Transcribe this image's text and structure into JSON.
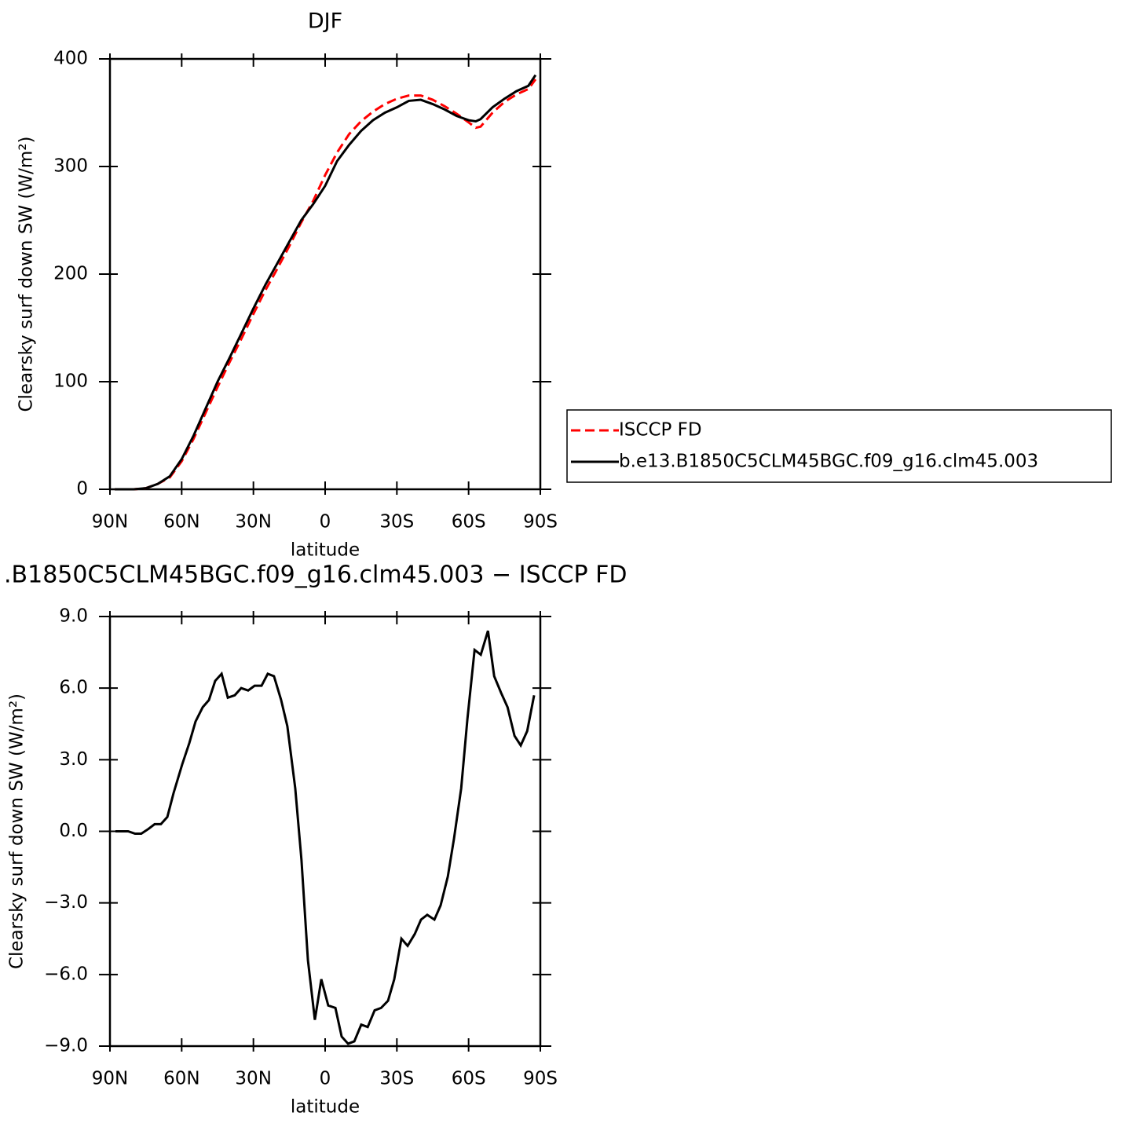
{
  "chart_data": [
    {
      "type": "line",
      "title": "DJF",
      "xlabel": "latitude",
      "ylabel": "Clearsky surf down SW (W/m²)",
      "x": [
        88,
        80,
        75,
        70,
        65,
        60,
        55,
        50,
        45,
        40,
        35,
        30,
        25,
        20,
        15,
        10,
        5,
        0,
        -5,
        -10,
        -15,
        -20,
        -25,
        -30,
        -35,
        -40,
        -45,
        -50,
        -55,
        -60,
        -63,
        -65,
        -70,
        -75,
        -80,
        -85,
        -88
      ],
      "series": [
        {
          "name": "ISCCP FD",
          "color": "#ff0000",
          "dashed": true,
          "values": [
            0,
            0,
            1,
            5,
            11,
            26,
            47,
            71,
            95,
            118,
            140,
            163,
            185,
            205,
            226,
            248,
            268,
            292,
            313,
            330,
            342,
            351,
            358,
            363,
            366,
            366,
            362,
            356,
            349,
            341,
            336,
            337,
            350,
            360,
            367,
            372,
            381
          ]
        },
        {
          "name": "b.e13.B1850C5CLM45BGC.f09_g16.clm45.003",
          "color": "#000000",
          "dashed": false,
          "values": [
            0,
            0,
            1,
            5,
            12,
            28,
            50,
            75,
            100,
            122,
            145,
            168,
            190,
            210,
            230,
            250,
            265,
            282,
            305,
            320,
            333,
            343,
            350,
            355,
            361,
            362,
            358,
            353,
            347,
            343,
            342,
            344,
            355,
            363,
            370,
            375,
            385
          ]
        }
      ],
      "xlim": [
        90,
        -90
      ],
      "xticks": [
        {
          "value": 90,
          "label": "90N"
        },
        {
          "value": 60,
          "label": "60N"
        },
        {
          "value": 30,
          "label": "30N"
        },
        0,
        {
          "value": -30,
          "label": "30S"
        },
        {
          "value": -60,
          "label": "60S"
        },
        {
          "value": -90,
          "label": "90S"
        }
      ],
      "ylim": [
        0,
        400
      ],
      "yticks": [
        0,
        100,
        200,
        300,
        400
      ],
      "legend": "right"
    },
    {
      "type": "line",
      "title": ".B1850C5CLM45BGC.f09_g16.clm45.003 − ISCCP FD",
      "xlabel": "latitude",
      "ylabel": "Clearsky surf down SW (W/m²)",
      "x": [
        87.7,
        82.4,
        79.5,
        76.9,
        73.9,
        71.3,
        68.7,
        66.0,
        63.4,
        59.8,
        56.8,
        54.2,
        51.2,
        48.6,
        46.0,
        43.3,
        40.7,
        37.8,
        35.1,
        32.2,
        29.5,
        26.6,
        24.0,
        21.4,
        18.4,
        15.8,
        12.5,
        9.9,
        7.2,
        4.3,
        1.6,
        -1.3,
        -4.3,
        -6.9,
        -9.6,
        -12.2,
        -15.1,
        -17.8,
        -20.7,
        -23.4,
        -26.3,
        -28.9,
        -31.9,
        -34.5,
        -37.5,
        -40.1,
        -42.7,
        -45.7,
        -48.3,
        -51.3,
        -53.9,
        -56.9,
        -59.5,
        -62.5,
        -65.1,
        -68.1,
        -70.7,
        -73.6,
        -76.3,
        -79.2,
        -81.8,
        -84.5,
        -87.4
      ],
      "series": [
        {
          "color": "#000000",
          "dashed": false,
          "values": [
            0,
            0,
            -0.1,
            -0.1,
            0.1,
            0.3,
            0.3,
            0.6,
            1.6,
            2.8,
            3.7,
            4.6,
            5.2,
            5.5,
            6.3,
            6.6,
            5.6,
            5.7,
            6.0,
            5.9,
            6.1,
            6.1,
            6.6,
            6.5,
            5.5,
            4.4,
            1.8,
            -1.2,
            -5.4,
            -7.9,
            -6.2,
            -7.3,
            -7.4,
            -8.6,
            -8.9,
            -8.8,
            -8.1,
            -8.2,
            -7.5,
            -7.4,
            -7.1,
            -6.2,
            -4.5,
            -4.8,
            -4.3,
            -3.7,
            -3.5,
            -3.7,
            -3.1,
            -1.9,
            -0.3,
            1.8,
            4.7,
            7.6,
            7.4,
            8.4,
            6.5,
            5.8,
            5.2,
            4.0,
            3.6,
            4.2,
            5.7
          ]
        }
      ],
      "xlim": [
        90,
        -90
      ],
      "xticks": [
        {
          "value": 90,
          "label": "90N"
        },
        {
          "value": 60,
          "label": "60N"
        },
        {
          "value": 30,
          "label": "30N"
        },
        0,
        {
          "value": -30,
          "label": "30S"
        },
        {
          "value": -60,
          "label": "60S"
        },
        {
          "value": -90,
          "label": "90S"
        }
      ],
      "ylim": [
        -9,
        9
      ],
      "yticks": [
        {
          "value": -9,
          "label": "−9.0"
        },
        {
          "value": -6,
          "label": "−6.0"
        },
        {
          "value": -3,
          "label": "−3.0"
        },
        {
          "value": 0,
          "label": "0.0"
        },
        {
          "value": 3,
          "label": "3.0"
        },
        {
          "value": 6,
          "label": "6.0"
        },
        {
          "value": 9,
          "label": "9.0"
        }
      ]
    }
  ]
}
